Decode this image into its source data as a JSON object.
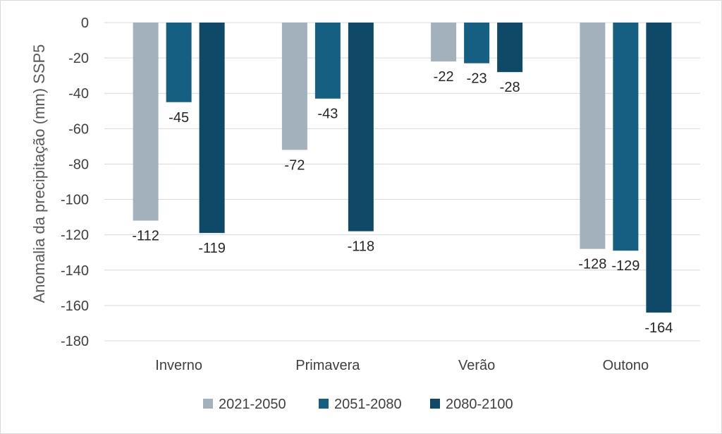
{
  "chart_data": {
    "type": "bar",
    "title": "",
    "xlabel": "",
    "ylabel": "Anomalia da precipitação (mm) SSP5",
    "ylim": [
      -180,
      0
    ],
    "yticks": [
      "0",
      "-20",
      "-40",
      "-60",
      "-80",
      "-100",
      "-120",
      "-140",
      "-160",
      "-180"
    ],
    "ytick_values": [
      0,
      -20,
      -40,
      -60,
      -80,
      -100,
      -120,
      -140,
      -160,
      -180
    ],
    "grid": true,
    "legend_position": "bottom",
    "categories": [
      "Inverno",
      "Primavera",
      "Verão",
      "Outono"
    ],
    "series": [
      {
        "name": "2021-2050",
        "color": "#a3b1bd",
        "values": [
          -112,
          -72,
          -22,
          -128
        ],
        "labels": [
          "-112",
          "-72",
          "-22",
          "-128"
        ]
      },
      {
        "name": "2051-2080",
        "color": "#156082",
        "values": [
          -45,
          -43,
          -23,
          -129
        ],
        "labels": [
          "-45",
          "-43",
          "-23",
          "-129"
        ]
      },
      {
        "name": "2080-2100",
        "color": "#0e4a67",
        "values": [
          -119,
          -118,
          -28,
          -164
        ],
        "labels": [
          "-119",
          "-118",
          "-28",
          "-164"
        ]
      }
    ]
  }
}
